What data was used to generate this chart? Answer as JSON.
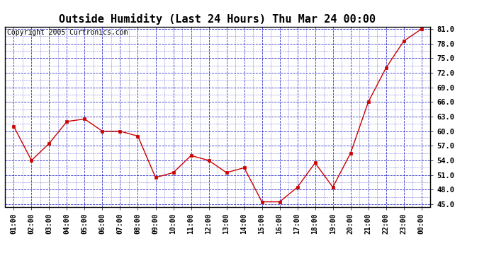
{
  "title": "Outside Humidity (Last 24 Hours) Thu Mar 24 00:00",
  "copyright": "Copyright 2005 Curtronics.com",
  "x_labels": [
    "01:00",
    "02:00",
    "03:00",
    "04:00",
    "05:00",
    "06:00",
    "07:00",
    "08:00",
    "09:00",
    "10:00",
    "11:00",
    "12:00",
    "13:00",
    "14:00",
    "15:00",
    "16:00",
    "17:00",
    "18:00",
    "19:00",
    "20:00",
    "21:00",
    "22:00",
    "23:00",
    "00:00"
  ],
  "x_values": [
    1,
    2,
    3,
    4,
    5,
    6,
    7,
    8,
    9,
    10,
    11,
    12,
    13,
    14,
    15,
    16,
    17,
    18,
    19,
    20,
    21,
    22,
    23,
    24
  ],
  "y_values": [
    61.0,
    54.0,
    57.5,
    62.0,
    62.5,
    60.0,
    60.0,
    59.0,
    50.5,
    51.5,
    55.0,
    54.0,
    51.5,
    52.5,
    45.5,
    45.5,
    48.5,
    53.5,
    48.5,
    55.5,
    66.0,
    73.0,
    78.5,
    81.0
  ],
  "line_color": "#cc0000",
  "marker_color": "#cc0000",
  "bg_color": "#ffffff",
  "plot_bg_color": "#ffffff",
  "grid_color": "#0000bb",
  "title_fontsize": 11,
  "copyright_fontsize": 7,
  "ylim": [
    44.5,
    81.5
  ],
  "yticks": [
    45.0,
    48.0,
    51.0,
    54.0,
    57.0,
    60.0,
    63.0,
    66.0,
    69.0,
    72.0,
    75.0,
    78.0,
    81.0
  ],
  "ylabel_fontsize": 7.5,
  "xlabel_fontsize": 7
}
